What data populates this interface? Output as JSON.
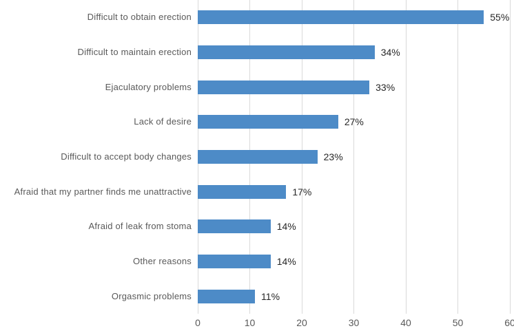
{
  "chart_data": {
    "type": "bar",
    "orientation": "horizontal",
    "title": "",
    "xlabel": "",
    "ylabel": "",
    "categories": [
      "Difficult to obtain erection",
      "Difficult to maintain erection",
      "Ejaculatory problems",
      "Lack of desire",
      "Difficult to accept body changes",
      "Afraid that my partner finds me unattractive",
      "Afraid of leak from stoma",
      "Other reasons",
      "Orgasmic problems"
    ],
    "values": [
      55,
      34,
      33,
      27,
      23,
      17,
      14,
      14,
      11
    ],
    "data_labels": [
      "55%",
      "34%",
      "33%",
      "27%",
      "23%",
      "17%",
      "14%",
      "14%",
      "11%"
    ],
    "xlim": [
      0,
      60
    ],
    "x_ticks": [
      "0",
      "10",
      "20",
      "30",
      "40",
      "50",
      "60"
    ],
    "grid": true,
    "legend": false
  },
  "style": {
    "bar_color": "#4D8BC7",
    "gridline_color": "#D9D9D9",
    "category_label_color": "#595959",
    "value_label_color": "#262626",
    "axis_tick_color": "#595959",
    "background": "#FFFFFF"
  }
}
